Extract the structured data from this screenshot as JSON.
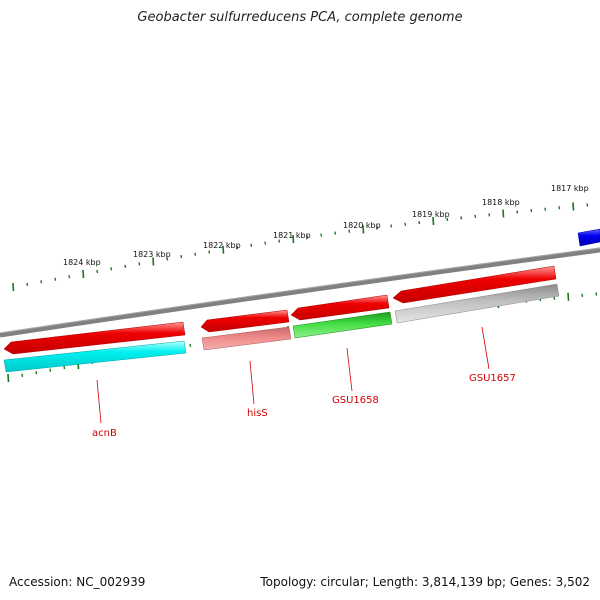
{
  "title": "Geobacter sulfurreducens PCA, complete genome",
  "footer": {
    "accession": "Accession: NC_002939",
    "summary": "Topology: circular; Length: 3,814,139 bp; Genes: 3,502"
  },
  "scale_labels": [
    "1824 kbp",
    "1823 kbp",
    "1822 kbp",
    "1821 kbp",
    "1820 kbp",
    "1819 kbp",
    "1818 kbp",
    "1817 kbp"
  ],
  "gene_labels": [
    "acnB",
    "hisS",
    "GSU1658",
    "GSU1657"
  ],
  "colors": {
    "backbone": "#808080",
    "tick": "#1a7a1a",
    "gene_red": "#ee0000",
    "gene_cyan": "#00e8e8",
    "gene_pink": "#e87878",
    "gene_green": "#33cc33",
    "gene_grey": "#b8b8b8",
    "gene_blue": "#0000ee",
    "label_red": "#d40000"
  }
}
